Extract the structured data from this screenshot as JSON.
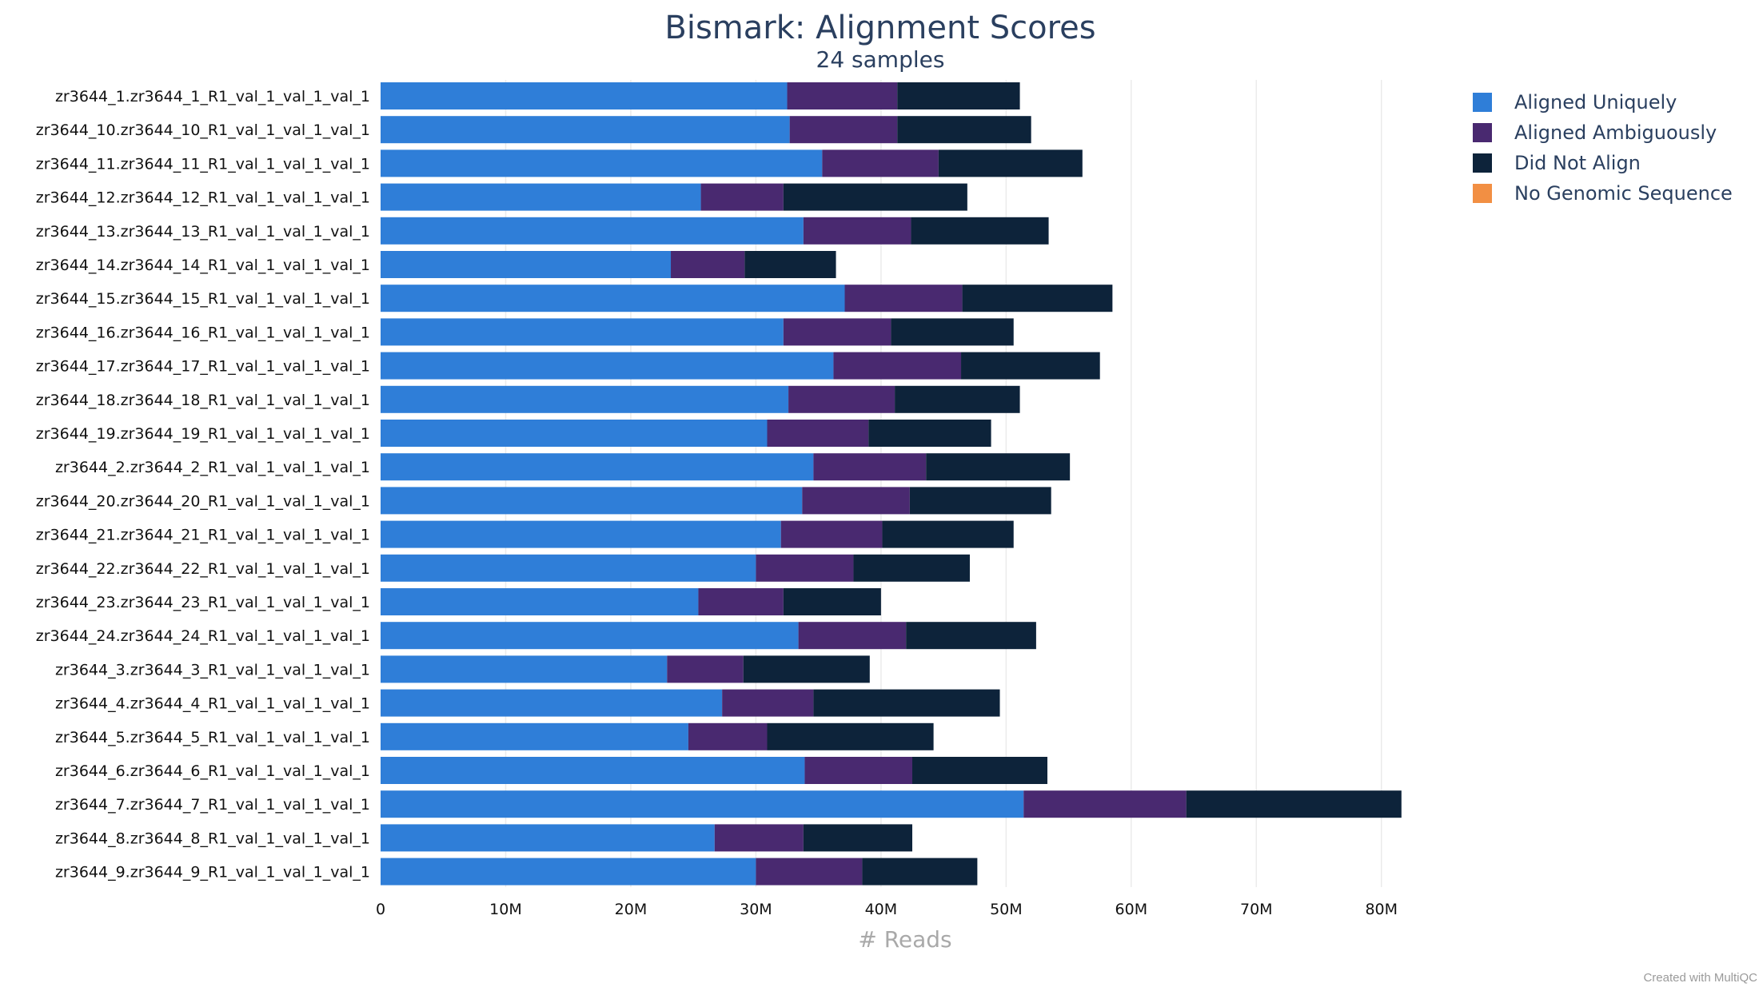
{
  "chart_data": {
    "type": "bar",
    "orientation": "horizontal",
    "stacked": true,
    "title": "Bismark: Alignment Scores",
    "subtitle": "24 samples",
    "xlabel": "# Reads",
    "ylabel": "",
    "xlim": [
      0,
      85000000
    ],
    "x_ticks": [
      {
        "value": 0,
        "label": "0"
      },
      {
        "value": 10000000,
        "label": "10M"
      },
      {
        "value": 20000000,
        "label": "20M"
      },
      {
        "value": 30000000,
        "label": "30M"
      },
      {
        "value": 40000000,
        "label": "40M"
      },
      {
        "value": 50000000,
        "label": "50M"
      },
      {
        "value": 60000000,
        "label": "60M"
      },
      {
        "value": 70000000,
        "label": "70M"
      },
      {
        "value": 80000000,
        "label": "80M"
      }
    ],
    "grid": "vertical",
    "legend_position": "top-right",
    "categories": [
      "zr3644_1.zr3644_1_R1_val_1_val_1_val_1",
      "zr3644_10.zr3644_10_R1_val_1_val_1_val_1",
      "zr3644_11.zr3644_11_R1_val_1_val_1_val_1",
      "zr3644_12.zr3644_12_R1_val_1_val_1_val_1",
      "zr3644_13.zr3644_13_R1_val_1_val_1_val_1",
      "zr3644_14.zr3644_14_R1_val_1_val_1_val_1",
      "zr3644_15.zr3644_15_R1_val_1_val_1_val_1",
      "zr3644_16.zr3644_16_R1_val_1_val_1_val_1",
      "zr3644_17.zr3644_17_R1_val_1_val_1_val_1",
      "zr3644_18.zr3644_18_R1_val_1_val_1_val_1",
      "zr3644_19.zr3644_19_R1_val_1_val_1_val_1",
      "zr3644_2.zr3644_2_R1_val_1_val_1_val_1",
      "zr3644_20.zr3644_20_R1_val_1_val_1_val_1",
      "zr3644_21.zr3644_21_R1_val_1_val_1_val_1",
      "zr3644_22.zr3644_22_R1_val_1_val_1_val_1",
      "zr3644_23.zr3644_23_R1_val_1_val_1_val_1",
      "zr3644_24.zr3644_24_R1_val_1_val_1_val_1",
      "zr3644_3.zr3644_3_R1_val_1_val_1_val_1",
      "zr3644_4.zr3644_4_R1_val_1_val_1_val_1",
      "zr3644_5.zr3644_5_R1_val_1_val_1_val_1",
      "zr3644_6.zr3644_6_R1_val_1_val_1_val_1",
      "zr3644_7.zr3644_7_R1_val_1_val_1_val_1",
      "zr3644_8.zr3644_8_R1_val_1_val_1_val_1",
      "zr3644_9.zr3644_9_R1_val_1_val_1_val_1"
    ],
    "series": [
      {
        "name": "Aligned Uniquely",
        "color": "#2f7ed8",
        "values": [
          32.5,
          32.7,
          35.3,
          25.6,
          33.8,
          23.2,
          37.1,
          32.2,
          36.2,
          32.6,
          30.9,
          34.6,
          33.7,
          32.0,
          30.0,
          25.4,
          33.4,
          22.9,
          27.3,
          24.6,
          33.9,
          51.4,
          26.7,
          30.0
        ]
      },
      {
        "name": "Aligned Ambiguously",
        "color": "#492970",
        "values": [
          8.8,
          8.6,
          9.3,
          6.6,
          8.6,
          5.9,
          9.4,
          8.6,
          10.2,
          8.5,
          8.1,
          9.0,
          8.6,
          8.1,
          7.8,
          6.8,
          8.6,
          6.1,
          7.3,
          6.3,
          8.6,
          13.0,
          7.1,
          8.5
        ]
      },
      {
        "name": "Did Not Align",
        "color": "#0d233a",
        "values": [
          9.8,
          10.7,
          11.5,
          14.7,
          11.0,
          7.3,
          12.0,
          9.8,
          11.1,
          10.0,
          9.8,
          11.5,
          11.3,
          10.5,
          9.3,
          7.8,
          10.4,
          10.1,
          14.9,
          13.3,
          10.8,
          17.2,
          8.7,
          9.2
        ]
      },
      {
        "name": "No Genomic Sequence",
        "color": "#f28f43",
        "values": [
          0,
          0,
          0,
          0,
          0,
          0,
          0,
          0,
          0,
          0,
          0,
          0,
          0,
          0,
          0,
          0,
          0,
          0,
          0,
          0,
          0,
          0,
          0,
          0
        ]
      }
    ],
    "value_unit_multiplier": 1000000,
    "credit": "Created with MultiQC"
  }
}
